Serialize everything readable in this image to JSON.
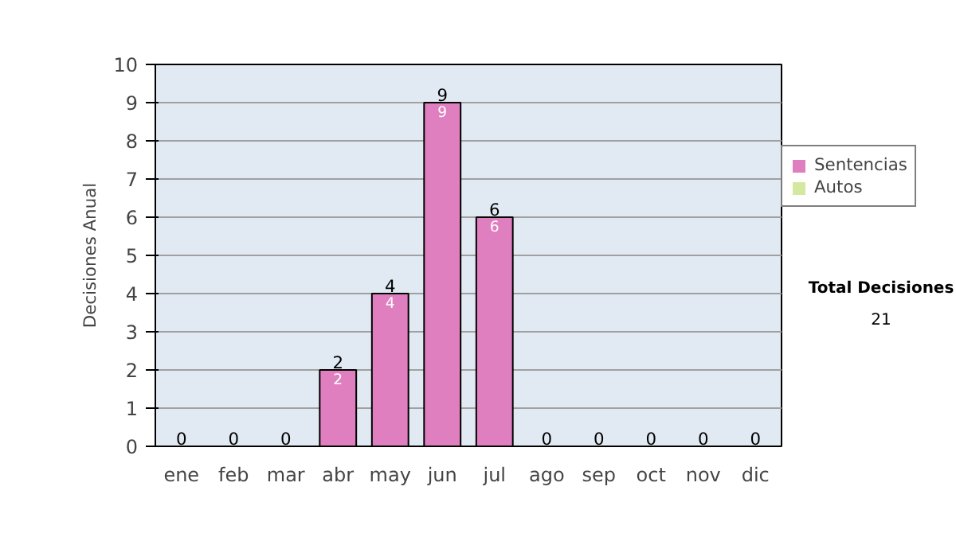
{
  "chart_data": {
    "type": "bar",
    "stacked": true,
    "ylabel": "Decisiones Anual",
    "categories": [
      "ene",
      "feb",
      "mar",
      "abr",
      "may",
      "jun",
      "jul",
      "ago",
      "sep",
      "oct",
      "nov",
      "dic"
    ],
    "series": [
      {
        "name": "Sentencias",
        "color": "#e07fbf",
        "values": [
          0,
          0,
          0,
          2,
          4,
          9,
          6,
          0,
          0,
          0,
          0,
          0
        ],
        "value_labels": [
          null,
          null,
          null,
          "2",
          "4",
          "9",
          "6",
          null,
          null,
          null,
          null,
          null
        ]
      },
      {
        "name": "Autos",
        "color": "#d4e8a0",
        "values": [
          0,
          0,
          0,
          0,
          0,
          0,
          0,
          0,
          0,
          0,
          0,
          0
        ]
      }
    ],
    "totals": [
      "0",
      "0",
      "0",
      "2",
      "4",
      "9",
      "6",
      "0",
      "0",
      "0",
      "0",
      "0"
    ],
    "ylim": [
      0,
      10
    ],
    "yticks": [
      0,
      1,
      2,
      3,
      4,
      5,
      6,
      7,
      8,
      9,
      10
    ],
    "grid": "y",
    "legend": "right",
    "annotations": [
      "Total Decisiones",
      "21"
    ]
  }
}
